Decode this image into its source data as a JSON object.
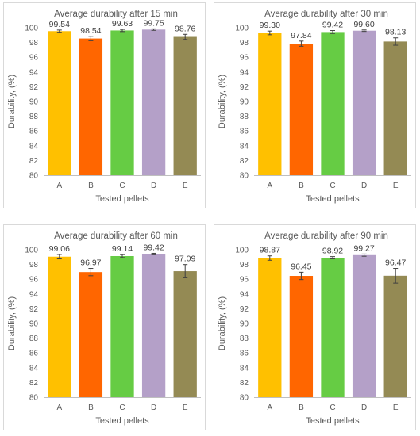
{
  "chart_data": [
    {
      "type": "bar",
      "title": "Average durability after 15 min",
      "xlabel": "Tested pellets",
      "ylabel": "Durability, (%)",
      "ylim": [
        80,
        100
      ],
      "yticks": [
        "80",
        "82",
        "84",
        "86",
        "88",
        "90",
        "92",
        "94",
        "96",
        "98",
        "100"
      ],
      "categories": [
        "A",
        "B",
        "C",
        "D",
        "E"
      ],
      "values": [
        99.54,
        98.54,
        99.63,
        99.75,
        98.76
      ],
      "value_labels": [
        "99.54",
        "98.54",
        "99.63",
        "99.75",
        "98.76"
      ],
      "errors": [
        0.15,
        0.3,
        0.15,
        0.1,
        0.35
      ],
      "colors": [
        "#FFC000",
        "#FF6600",
        "#66CC44",
        "#B4A0C8",
        "#948A54"
      ],
      "grid": false
    },
    {
      "type": "bar",
      "title": "Average durability after 30 min",
      "xlabel": "Tested pellets",
      "ylabel": "Durability, (%)",
      "ylim": [
        80,
        100
      ],
      "yticks": [
        "80",
        "82",
        "84",
        "86",
        "88",
        "90",
        "92",
        "94",
        "96",
        "98",
        "100"
      ],
      "categories": [
        "A",
        "B",
        "C",
        "D",
        "E"
      ],
      "values": [
        99.3,
        97.84,
        99.42,
        99.6,
        98.13
      ],
      "value_labels": [
        "99.30",
        "97.84",
        "99.42",
        "99.60",
        "98.13"
      ],
      "errors": [
        0.25,
        0.35,
        0.2,
        0.1,
        0.5
      ],
      "colors": [
        "#FFC000",
        "#FF6600",
        "#66CC44",
        "#B4A0C8",
        "#948A54"
      ],
      "grid": false
    },
    {
      "type": "bar",
      "title": "Average durability after 60 min",
      "xlabel": "Tested pellets",
      "ylabel": "Durability, (%)",
      "ylim": [
        80,
        100
      ],
      "yticks": [
        "80",
        "82",
        "84",
        "86",
        "88",
        "90",
        "92",
        "94",
        "96",
        "98",
        "100"
      ],
      "categories": [
        "A",
        "B",
        "C",
        "D",
        "E"
      ],
      "values": [
        99.06,
        96.97,
        99.14,
        99.42,
        97.09
      ],
      "value_labels": [
        "99.06",
        "96.97",
        "99.14",
        "99.42",
        "97.09"
      ],
      "errors": [
        0.3,
        0.5,
        0.2,
        0.1,
        0.9
      ],
      "colors": [
        "#FFC000",
        "#FF6600",
        "#66CC44",
        "#B4A0C8",
        "#948A54"
      ],
      "grid": false
    },
    {
      "type": "bar",
      "title": "Average durability after 90 min",
      "xlabel": "Tested pellets",
      "ylabel": "Durability, (%)",
      "ylim": [
        80,
        100
      ],
      "yticks": [
        "80",
        "82",
        "84",
        "86",
        "88",
        "90",
        "92",
        "94",
        "96",
        "98",
        "100"
      ],
      "categories": [
        "A",
        "B",
        "C",
        "D",
        "E"
      ],
      "values": [
        98.87,
        96.45,
        98.92,
        99.27,
        96.47
      ],
      "value_labels": [
        "98.87",
        "96.45",
        "98.92",
        "99.27",
        "96.47"
      ],
      "errors": [
        0.3,
        0.5,
        0.15,
        0.15,
        1.0
      ],
      "colors": [
        "#FFC000",
        "#FF6600",
        "#66CC44",
        "#B4A0C8",
        "#948A54"
      ],
      "grid": false
    }
  ]
}
